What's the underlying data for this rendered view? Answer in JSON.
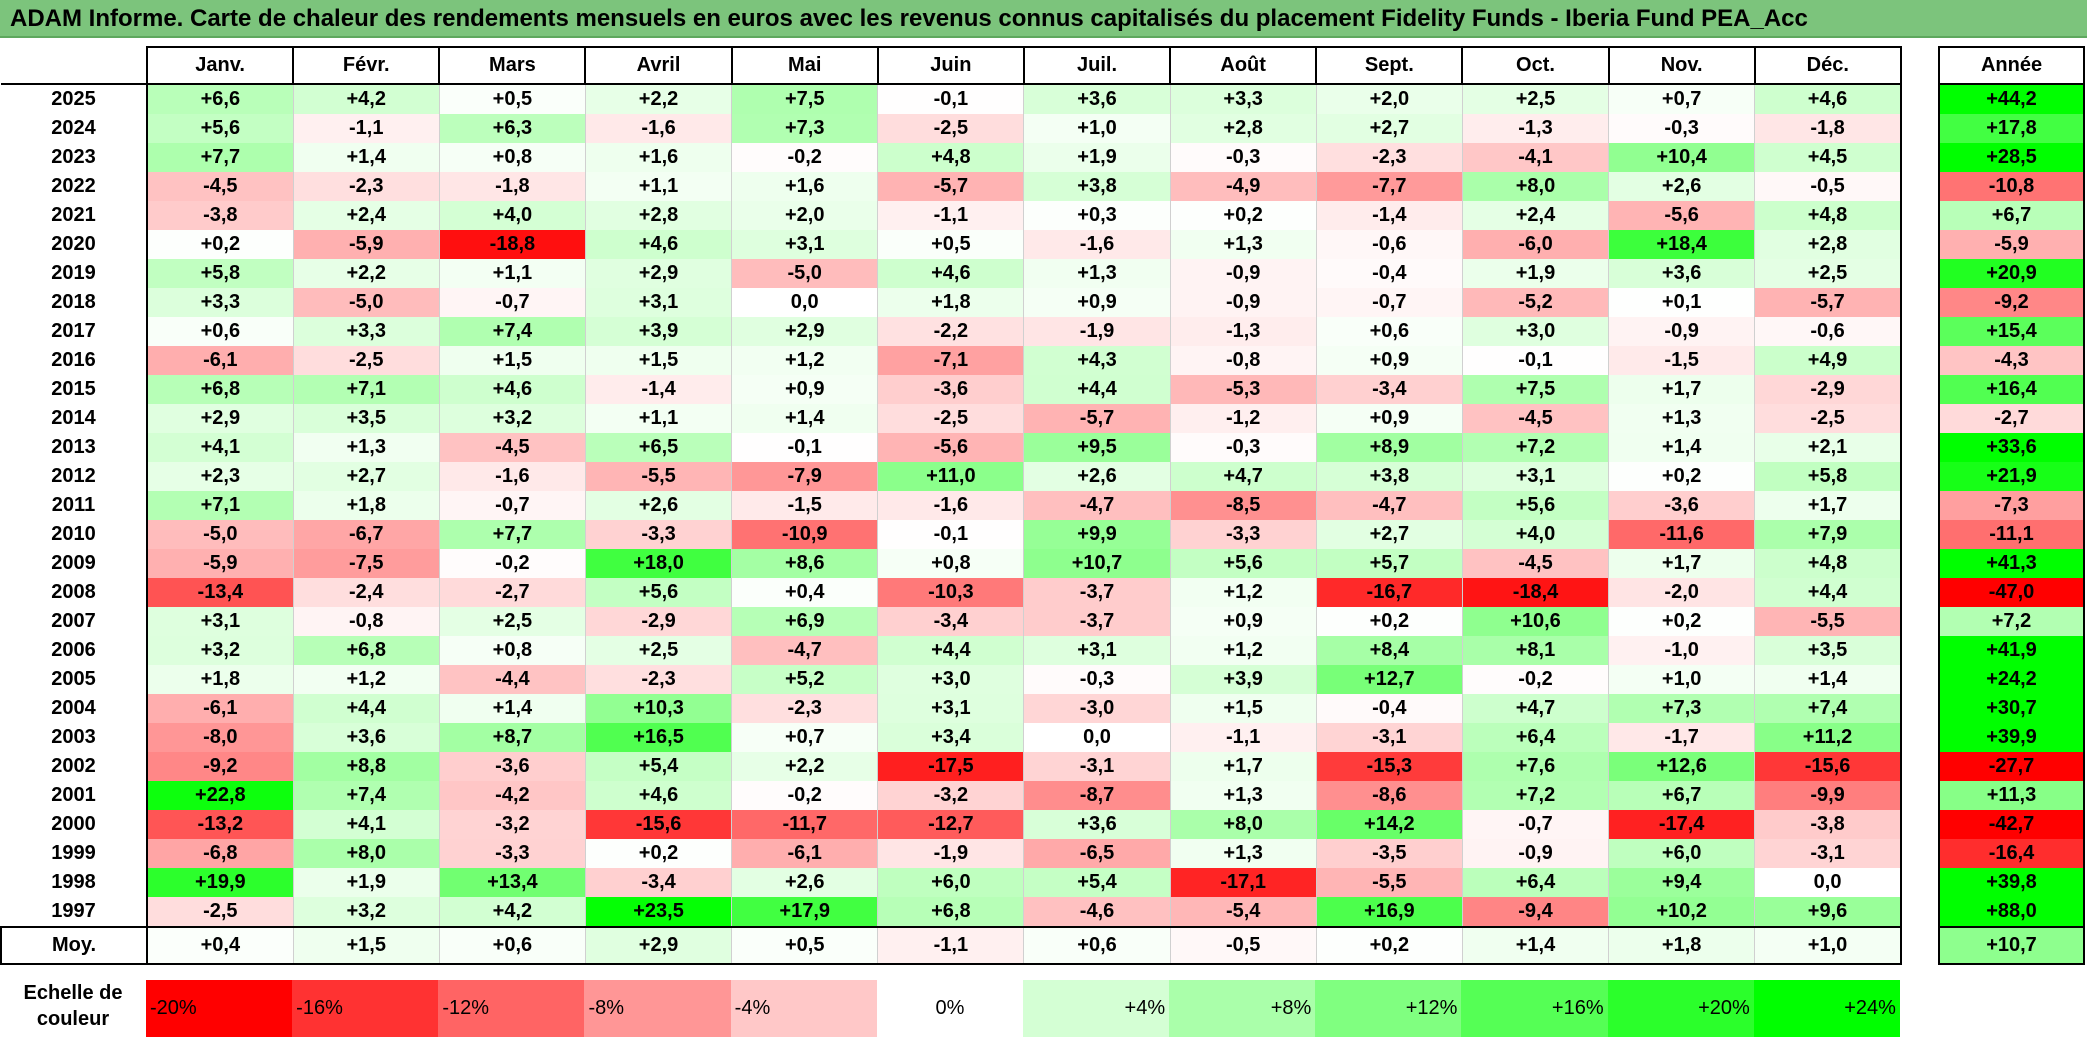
{
  "title": "ADAM Informe. Carte de chaleur des rendements mensuels en euros avec les revenus connus capitalisés du placement Fidelity Funds - Iberia Fund PEA_Acc",
  "chart_data": {
    "type": "heatmap",
    "months": [
      "Janv.",
      "Févr.",
      "Mars",
      "Avril",
      "Mai",
      "Juin",
      "Juil.",
      "Août",
      "Sept.",
      "Oct.",
      "Nov.",
      "Déc."
    ],
    "year_header": "Année",
    "rows": [
      {
        "year": "2025",
        "values": [
          "+6,6",
          "+4,2",
          "+0,5",
          "+2,2",
          "+7,5",
          "-0,1",
          "+3,6",
          "+3,3",
          "+2,0",
          "+2,5",
          "+0,7",
          "+4,6"
        ],
        "annual": "+44,2"
      },
      {
        "year": "2024",
        "values": [
          "+5,6",
          "-1,1",
          "+6,3",
          "-1,6",
          "+7,3",
          "-2,5",
          "+1,0",
          "+2,8",
          "+2,7",
          "-1,3",
          "-0,3",
          "-1,8"
        ],
        "annual": "+17,8"
      },
      {
        "year": "2023",
        "values": [
          "+7,7",
          "+1,4",
          "+0,8",
          "+1,6",
          "-0,2",
          "+4,8",
          "+1,9",
          "-0,3",
          "-2,3",
          "-4,1",
          "+10,4",
          "+4,5"
        ],
        "annual": "+28,5"
      },
      {
        "year": "2022",
        "values": [
          "-4,5",
          "-2,3",
          "-1,8",
          "+1,1",
          "+1,6",
          "-5,7",
          "+3,8",
          "-4,9",
          "-7,7",
          "+8,0",
          "+2,6",
          "-0,5"
        ],
        "annual": "-10,8"
      },
      {
        "year": "2021",
        "values": [
          "-3,8",
          "+2,4",
          "+4,0",
          "+2,8",
          "+2,0",
          "-1,1",
          "+0,3",
          "+0,2",
          "-1,4",
          "+2,4",
          "-5,6",
          "+4,8"
        ],
        "annual": "+6,7"
      },
      {
        "year": "2020",
        "values": [
          "+0,2",
          "-5,9",
          "-18,8",
          "+4,6",
          "+3,1",
          "+0,5",
          "-1,6",
          "+1,3",
          "-0,6",
          "-6,0",
          "+18,4",
          "+2,8"
        ],
        "annual": "-5,9"
      },
      {
        "year": "2019",
        "values": [
          "+5,8",
          "+2,2",
          "+1,1",
          "+2,9",
          "-5,0",
          "+4,6",
          "+1,3",
          "-0,9",
          "-0,4",
          "+1,9",
          "+3,6",
          "+2,5"
        ],
        "annual": "+20,9"
      },
      {
        "year": "2018",
        "values": [
          "+3,3",
          "-5,0",
          "-0,7",
          "+3,1",
          "0,0",
          "+1,8",
          "+0,9",
          "-0,9",
          "-0,7",
          "-5,2",
          "+0,1",
          "-5,7"
        ],
        "annual": "-9,2"
      },
      {
        "year": "2017",
        "values": [
          "+0,6",
          "+3,3",
          "+7,4",
          "+3,9",
          "+2,9",
          "-2,2",
          "-1,9",
          "-1,3",
          "+0,6",
          "+3,0",
          "-0,9",
          "-0,6"
        ],
        "annual": "+15,4"
      },
      {
        "year": "2016",
        "values": [
          "-6,1",
          "-2,5",
          "+1,5",
          "+1,5",
          "+1,2",
          "-7,1",
          "+4,3",
          "-0,8",
          "+0,9",
          "-0,1",
          "-1,5",
          "+4,9"
        ],
        "annual": "-4,3"
      },
      {
        "year": "2015",
        "values": [
          "+6,8",
          "+7,1",
          "+4,6",
          "-1,4",
          "+0,9",
          "-3,6",
          "+4,4",
          "-5,3",
          "-3,4",
          "+7,5",
          "+1,7",
          "-2,9"
        ],
        "annual": "+16,4"
      },
      {
        "year": "2014",
        "values": [
          "+2,9",
          "+3,5",
          "+3,2",
          "+1,1",
          "+1,4",
          "-2,5",
          "-5,7",
          "-1,2",
          "+0,9",
          "-4,5",
          "+1,3",
          "-2,5"
        ],
        "annual": "-2,7"
      },
      {
        "year": "2013",
        "values": [
          "+4,1",
          "+1,3",
          "-4,5",
          "+6,5",
          "-0,1",
          "-5,6",
          "+9,5",
          "-0,3",
          "+8,9",
          "+7,2",
          "+1,4",
          "+2,1"
        ],
        "annual": "+33,6"
      },
      {
        "year": "2012",
        "values": [
          "+2,3",
          "+2,7",
          "-1,6",
          "-5,5",
          "-7,9",
          "+11,0",
          "+2,6",
          "+4,7",
          "+3,8",
          "+3,1",
          "+0,2",
          "+5,8"
        ],
        "annual": "+21,9"
      },
      {
        "year": "2011",
        "values": [
          "+7,1",
          "+1,8",
          "-0,7",
          "+2,6",
          "-1,5",
          "-1,6",
          "-4,7",
          "-8,5",
          "-4,7",
          "+5,6",
          "-3,6",
          "+1,7"
        ],
        "annual": "-7,3"
      },
      {
        "year": "2010",
        "values": [
          "-5,0",
          "-6,7",
          "+7,7",
          "-3,3",
          "-10,9",
          "-0,1",
          "+9,9",
          "-3,3",
          "+2,7",
          "+4,0",
          "-11,6",
          "+7,9"
        ],
        "annual": "-11,1"
      },
      {
        "year": "2009",
        "values": [
          "-5,9",
          "-7,5",
          "-0,2",
          "+18,0",
          "+8,6",
          "+0,8",
          "+10,7",
          "+5,6",
          "+5,7",
          "-4,5",
          "+1,7",
          "+4,8"
        ],
        "annual": "+41,3"
      },
      {
        "year": "2008",
        "values": [
          "-13,4",
          "-2,4",
          "-2,7",
          "+5,6",
          "+0,4",
          "-10,3",
          "-3,7",
          "+1,2",
          "-16,7",
          "-18,4",
          "-2,0",
          "+4,4"
        ],
        "annual": "-47,0"
      },
      {
        "year": "2007",
        "values": [
          "+3,1",
          "-0,8",
          "+2,5",
          "-2,9",
          "+6,9",
          "-3,4",
          "-3,7",
          "+0,9",
          "+0,2",
          "+10,6",
          "+0,2",
          "-5,5"
        ],
        "annual": "+7,2"
      },
      {
        "year": "2006",
        "values": [
          "+3,2",
          "+6,8",
          "+0,8",
          "+2,5",
          "-4,7",
          "+4,4",
          "+3,1",
          "+1,2",
          "+8,4",
          "+8,1",
          "-1,0",
          "+3,5"
        ],
        "annual": "+41,9"
      },
      {
        "year": "2005",
        "values": [
          "+1,8",
          "+1,2",
          "-4,4",
          "-2,3",
          "+5,2",
          "+3,0",
          "-0,3",
          "+3,9",
          "+12,7",
          "-0,2",
          "+1,0",
          "+1,4"
        ],
        "annual": "+24,2"
      },
      {
        "year": "2004",
        "values": [
          "-6,1",
          "+4,4",
          "+1,4",
          "+10,3",
          "-2,3",
          "+3,1",
          "-3,0",
          "+1,5",
          "-0,4",
          "+4,7",
          "+7,3",
          "+7,4"
        ],
        "annual": "+30,7"
      },
      {
        "year": "2003",
        "values": [
          "-8,0",
          "+3,6",
          "+8,7",
          "+16,5",
          "+0,7",
          "+3,4",
          "0,0",
          "-1,1",
          "-3,1",
          "+6,4",
          "-1,7",
          "+11,2"
        ],
        "annual": "+39,9"
      },
      {
        "year": "2002",
        "values": [
          "-9,2",
          "+8,8",
          "-3,6",
          "+5,4",
          "+2,2",
          "-17,5",
          "-3,1",
          "+1,7",
          "-15,3",
          "+7,6",
          "+12,6",
          "-15,6"
        ],
        "annual": "-27,7"
      },
      {
        "year": "2001",
        "values": [
          "+22,8",
          "+7,4",
          "-4,2",
          "+4,6",
          "-0,2",
          "-3,2",
          "-8,7",
          "+1,3",
          "-8,6",
          "+7,2",
          "+6,7",
          "-9,9"
        ],
        "annual": "+11,3"
      },
      {
        "year": "2000",
        "values": [
          "-13,2",
          "+4,1",
          "-3,2",
          "-15,6",
          "-11,7",
          "-12,7",
          "+3,6",
          "+8,0",
          "+14,2",
          "-0,7",
          "-17,4",
          "-3,8"
        ],
        "annual": "-42,7"
      },
      {
        "year": "1999",
        "values": [
          "-6,8",
          "+8,0",
          "-3,3",
          "+0,2",
          "-6,1",
          "-1,9",
          "-6,5",
          "+1,3",
          "-3,5",
          "-0,9",
          "+6,0",
          "-3,1"
        ],
        "annual": "-16,4"
      },
      {
        "year": "1998",
        "values": [
          "+19,9",
          "+1,9",
          "+13,4",
          "-3,4",
          "+2,6",
          "+6,0",
          "+5,4",
          "-17,1",
          "-5,5",
          "+6,4",
          "+9,4",
          "0,0"
        ],
        "annual": "+39,8"
      },
      {
        "year": "1997",
        "values": [
          "-2,5",
          "+3,2",
          "+4,2",
          "+23,5",
          "+17,9",
          "+6,8",
          "-4,6",
          "-5,4",
          "+16,9",
          "-9,4",
          "+10,2",
          "+9,6"
        ],
        "annual": "+88,0"
      }
    ],
    "average": {
      "label": "Moy.",
      "values": [
        "+0,4",
        "+1,5",
        "+0,6",
        "+2,9",
        "+0,5",
        "-1,1",
        "+0,6",
        "-0,5",
        "+0,2",
        "+1,4",
        "+1,8",
        "+1,0"
      ],
      "annual": "+10,7"
    },
    "legend": {
      "label": "Echelle de couleur",
      "stops": [
        {
          "text": "-20%",
          "value": -20,
          "color": "#ff0000"
        },
        {
          "text": "-16%",
          "value": -16,
          "color": "#ff3232"
        },
        {
          "text": "-12%",
          "value": -12,
          "color": "#ff6464"
        },
        {
          "text": "-8%",
          "value": -8,
          "color": "#ff9696"
        },
        {
          "text": "-4%",
          "value": -4,
          "color": "#ffc8c8"
        },
        {
          "text": "0%",
          "value": 0,
          "color": "#ffffff"
        },
        {
          "text": "+4%",
          "value": 4,
          "color": "#d4ffd4"
        },
        {
          "text": "+8%",
          "value": 8,
          "color": "#aaffaa"
        },
        {
          "text": "+12%",
          "value": 12,
          "color": "#80ff80"
        },
        {
          "text": "+16%",
          "value": 16,
          "color": "#55ff55"
        },
        {
          "text": "+20%",
          "value": 20,
          "color": "#2bff2b"
        },
        {
          "text": "+24%",
          "value": 24,
          "color": "#00ff00"
        }
      ]
    }
  },
  "colors": {
    "title_bg": "#7cc47c",
    "negative_max": "#ff0000",
    "positive_max": "#00ff00",
    "neutral": "#ffffff"
  }
}
